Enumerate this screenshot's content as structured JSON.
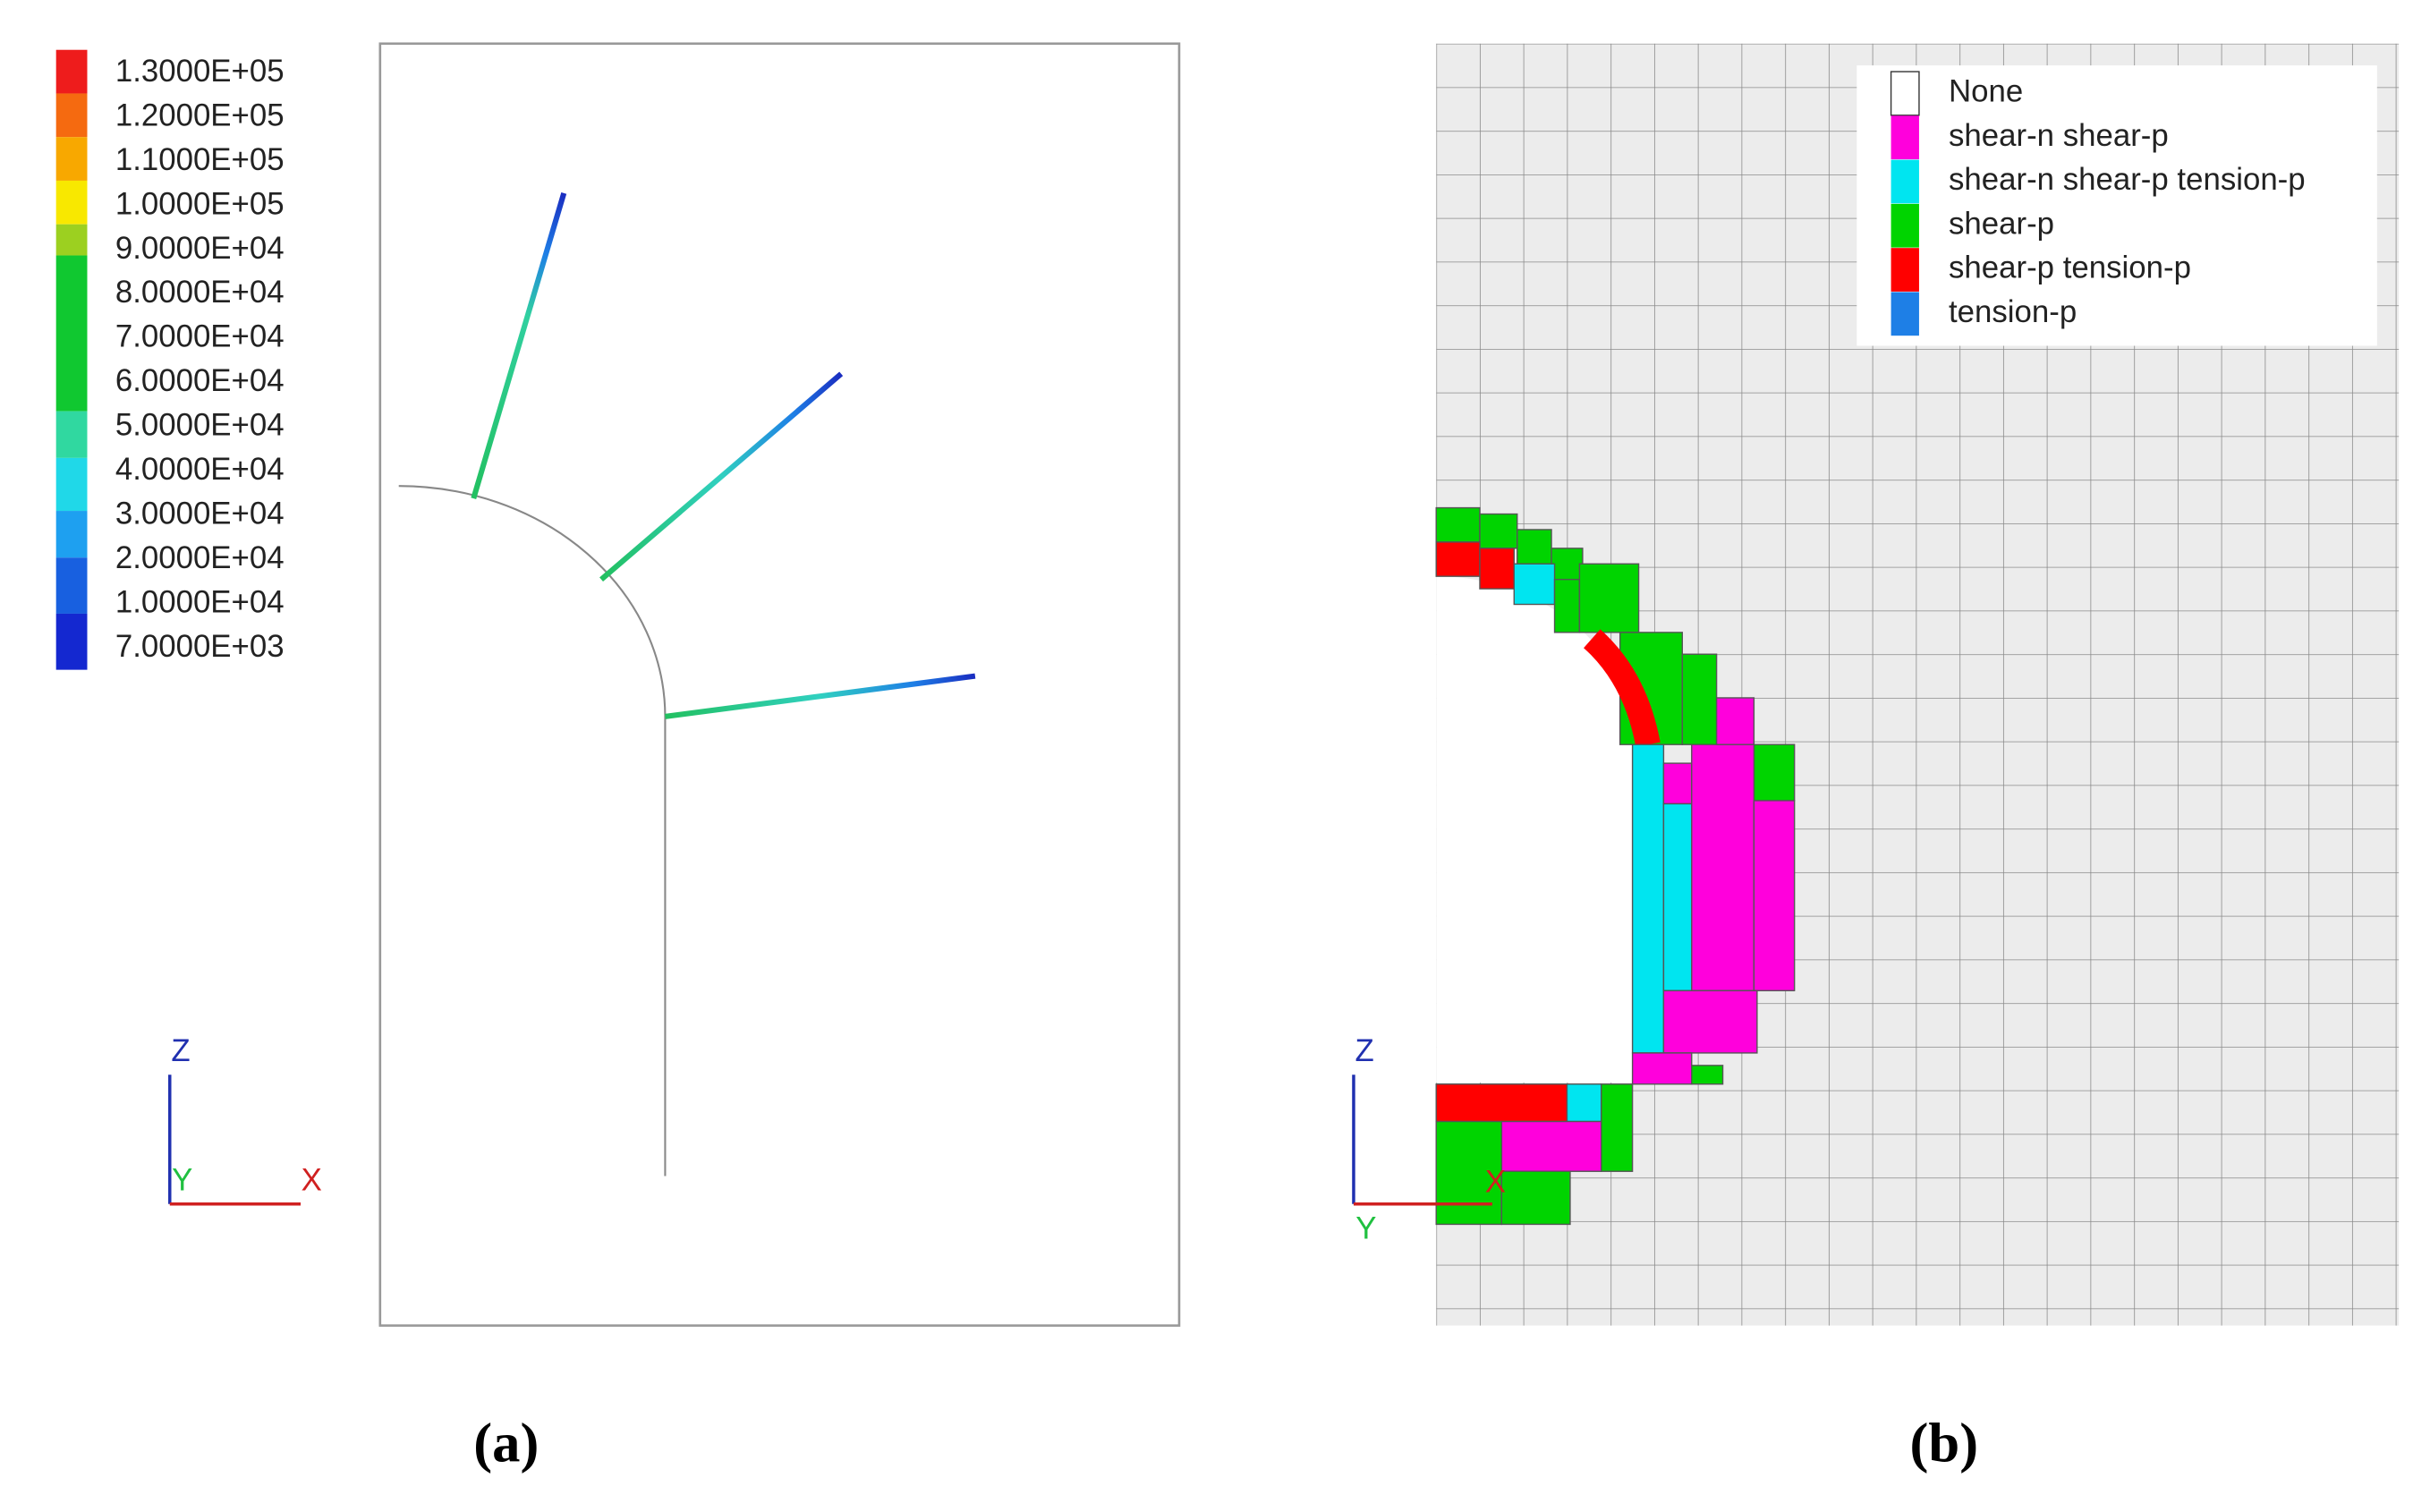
{
  "panel_a": {
    "colorbar": {
      "labels": [
        "1.3000E+05",
        "1.2000E+05",
        "1.1000E+05",
        "1.0000E+05",
        "9.0000E+04",
        "8.0000E+04",
        "7.0000E+04",
        "6.0000E+04",
        "5.0000E+04",
        "4.0000E+04",
        "3.0000E+04",
        "2.0000E+04",
        "1.0000E+04",
        "7.0000E+03"
      ]
    },
    "axes": {
      "z": "Z",
      "y": "Y",
      "x": "X"
    },
    "caption": "(a)"
  },
  "panel_b": {
    "legend": [
      {
        "label": "None",
        "color": "#ffffff"
      },
      {
        "label": "shear-n shear-p",
        "color": "#ff00dc"
      },
      {
        "label": "shear-n shear-p tension-p",
        "color": "#00e5f0"
      },
      {
        "label": "shear-p",
        "color": "#00d400"
      },
      {
        "label": "shear-p tension-p",
        "color": "#ff0000"
      },
      {
        "label": "tension-p",
        "color": "#1e7fe6"
      }
    ],
    "axes": {
      "z": "Z",
      "y": "Y",
      "x": "X"
    },
    "caption": "(b)"
  }
}
